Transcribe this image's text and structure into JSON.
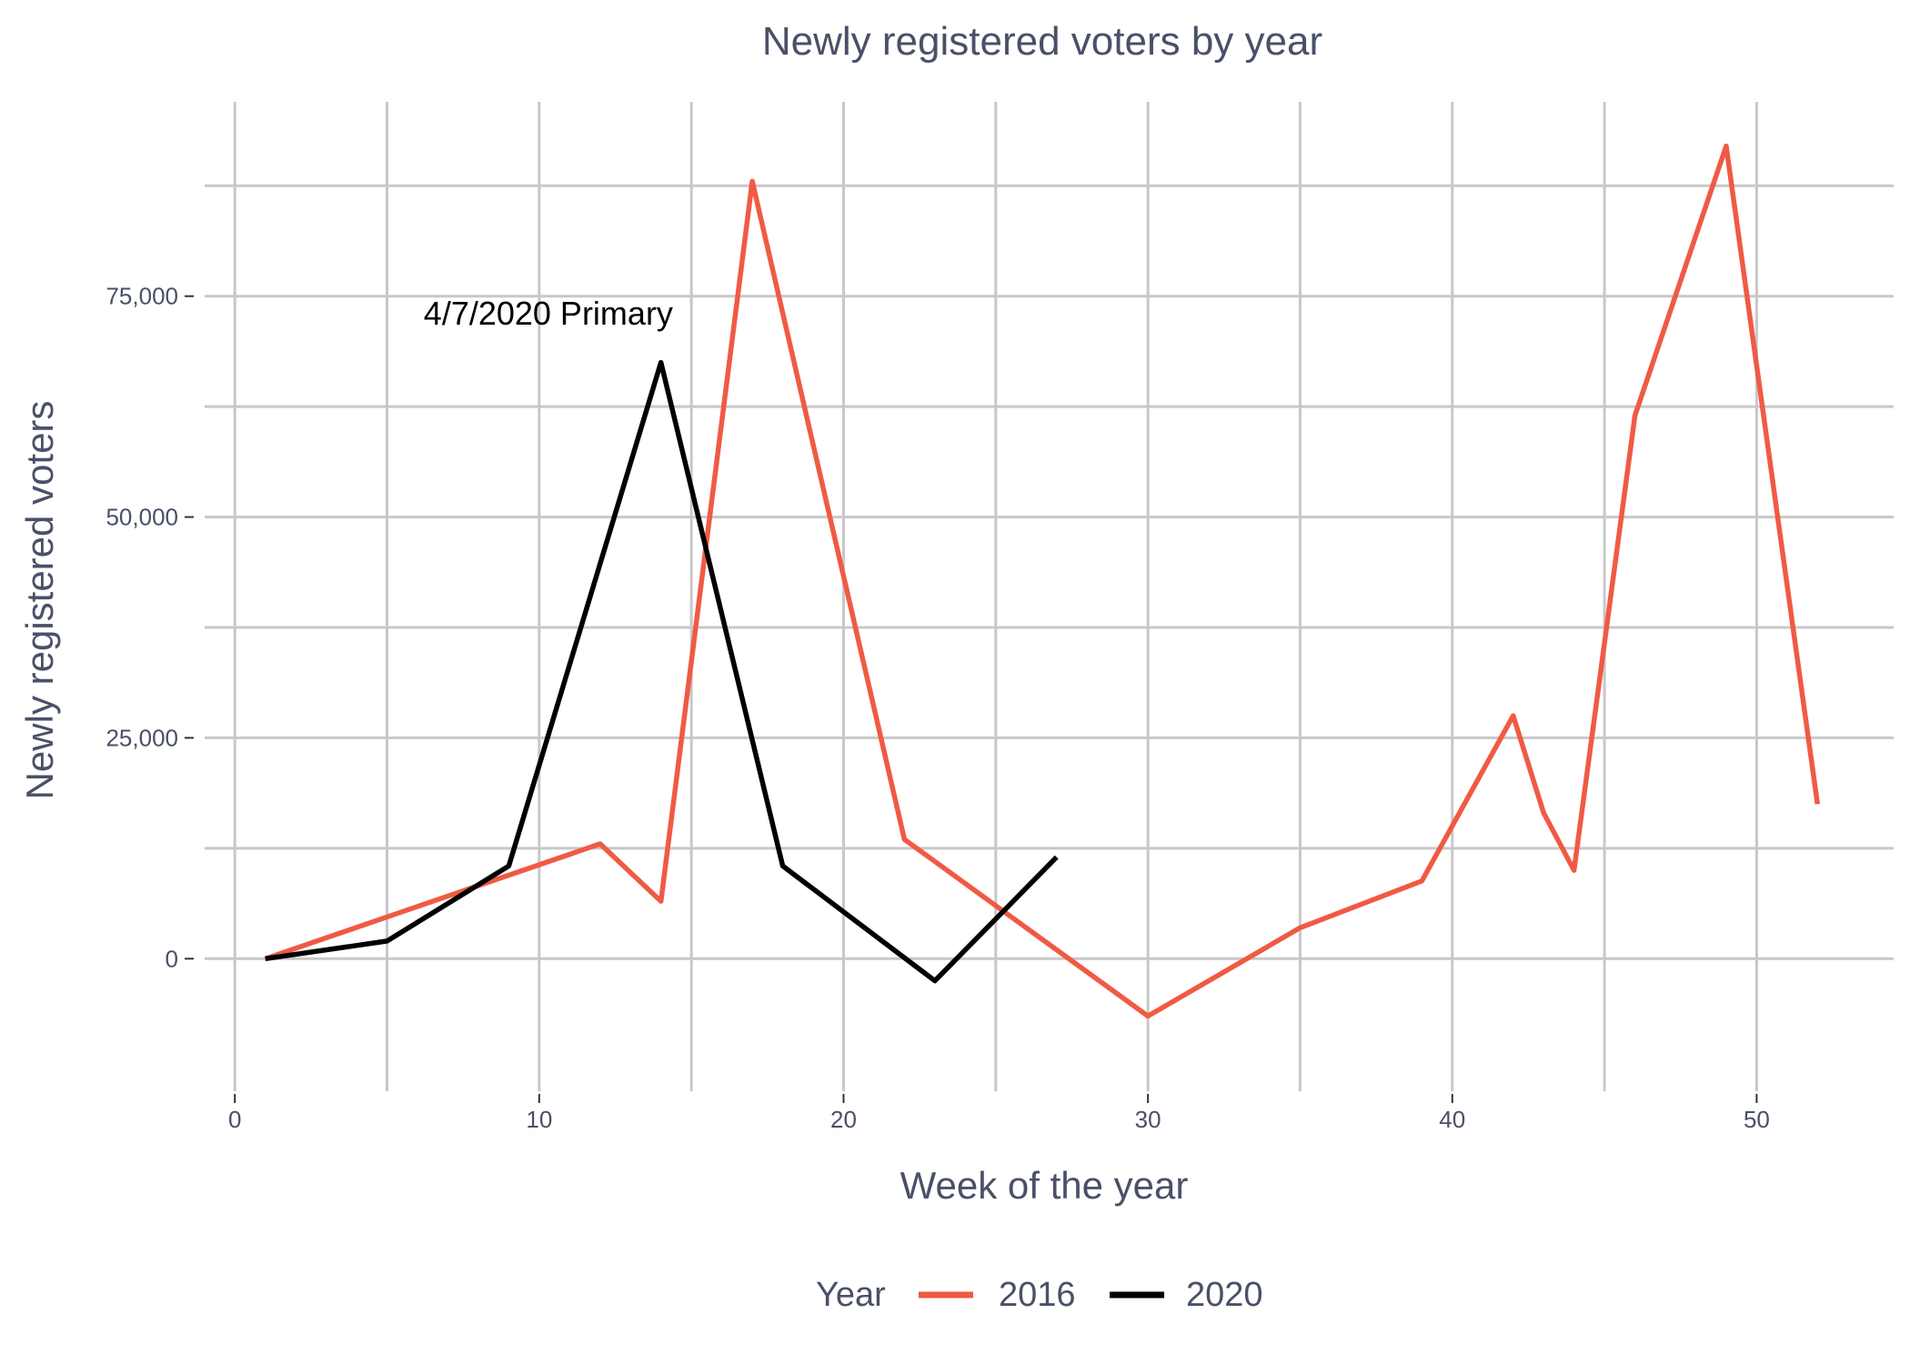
{
  "chart_data": {
    "type": "line",
    "title": "Newly registered voters by year",
    "xlabel": "Week of the year",
    "ylabel": "Newly registered voters",
    "xlim": [
      -1.5,
      54.5
    ],
    "ylim": [
      -15000,
      97000
    ],
    "x_ticks": [
      0,
      10,
      20,
      30,
      40,
      50
    ],
    "x_tick_labels": [
      "0",
      "10",
      "20",
      "30",
      "40",
      "50"
    ],
    "x_minor_grid": [
      5,
      15,
      25,
      35,
      45
    ],
    "y_ticks": [
      0,
      25000,
      50000,
      75000
    ],
    "y_tick_labels": [
      "0",
      "25,000",
      "50,000",
      "75,000"
    ],
    "y_minor_grid": [
      12500,
      37500,
      62500,
      87500
    ],
    "grid": true,
    "legend": {
      "title": "Year",
      "position": "bottom",
      "entries": [
        "2016",
        "2020"
      ]
    },
    "series": [
      {
        "name": "2016",
        "color": "#f05a44",
        "points": [
          [
            1,
            0
          ],
          [
            12,
            13000
          ],
          [
            14,
            6500
          ],
          [
            17,
            88000
          ],
          [
            22,
            13500
          ],
          [
            30,
            -6500
          ],
          [
            35,
            3500
          ],
          [
            39,
            8800
          ],
          [
            42,
            27500
          ],
          [
            43,
            16500
          ],
          [
            44,
            10000
          ],
          [
            46,
            61500
          ],
          [
            49,
            92000
          ],
          [
            52,
            17500
          ]
        ]
      },
      {
        "name": "2020",
        "color": "#000000",
        "points": [
          [
            1,
            0
          ],
          [
            5,
            2000
          ],
          [
            9,
            10500
          ],
          [
            14,
            67500
          ],
          [
            18,
            10500
          ],
          [
            23,
            -2500
          ],
          [
            27,
            11500
          ]
        ]
      }
    ],
    "annotations": [
      {
        "text": "4/7/2020 Primary",
        "x": 10.3,
        "y": 73000
      }
    ]
  }
}
